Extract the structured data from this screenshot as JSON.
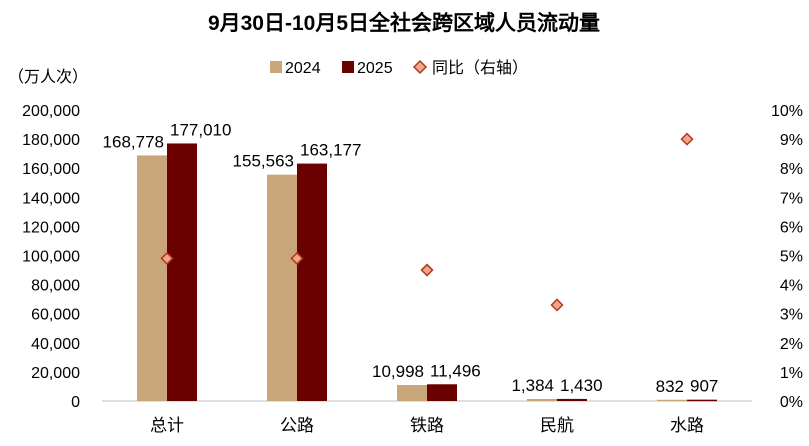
{
  "chart_data": {
    "type": "bar",
    "title": "9月30日-10月5日全社会跨区域人员流动量",
    "ylabel": "（万人次）",
    "ylim": [
      0,
      200000
    ],
    "y_ticks": [
      "0",
      "20,000",
      "40,000",
      "60,000",
      "80,000",
      "100,000",
      "120,000",
      "140,000",
      "160,000",
      "180,000",
      "200,000"
    ],
    "y2lim": [
      0,
      10
    ],
    "y2_ticks": [
      "0%",
      "1%",
      "2%",
      "3%",
      "4%",
      "5%",
      "6%",
      "7%",
      "8%",
      "9%",
      "10%"
    ],
    "categories": [
      "总计",
      "公路",
      "铁路",
      "民航",
      "水路"
    ],
    "series": [
      {
        "name": "2024",
        "color": "#c8a67a",
        "values": [
          168778,
          155563,
          10998,
          1384,
          832
        ],
        "labels": [
          "168,778",
          "155,563",
          "10,998",
          "1,384",
          "832"
        ]
      },
      {
        "name": "2025",
        "color": "#6b0000",
        "values": [
          177010,
          163177,
          11496,
          1430,
          907
        ],
        "labels": [
          "177,010",
          "163,177",
          "11,496",
          "1,430",
          "907"
        ]
      }
    ],
    "line_series": {
      "name": "同比（右轴）",
      "axis": "right",
      "marker": "diamond",
      "fill": "#f2a58e",
      "stroke": "#b03a1a",
      "values": [
        4.9,
        4.9,
        4.5,
        3.3,
        9.0
      ]
    },
    "legend_position": "top-center",
    "grid": false
  }
}
